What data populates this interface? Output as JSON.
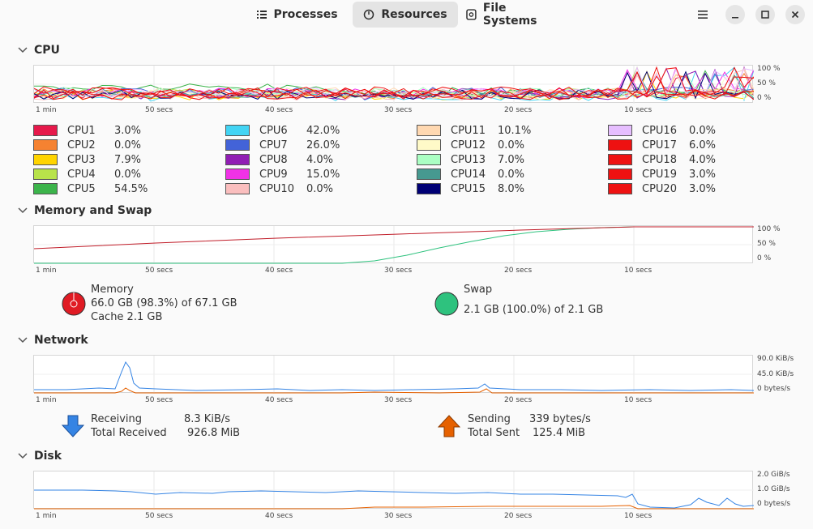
{
  "header": {
    "tabs": [
      {
        "label": "Processes",
        "active": false,
        "icon": "list-icon"
      },
      {
        "label": "Resources",
        "active": true,
        "icon": "gauge-icon"
      },
      {
        "label": "File Systems",
        "active": false,
        "icon": "disk-icon"
      }
    ]
  },
  "time_axis": [
    "1 min",
    "50 secs",
    "40 secs",
    "30 secs",
    "20 secs",
    "10 secs"
  ],
  "cpu": {
    "title": "CPU",
    "y_ticks": [
      "100 %",
      "50 %",
      "0 %"
    ],
    "cores": [
      {
        "name": "CPU1",
        "value": "3.0%",
        "color": "#e6194b"
      },
      {
        "name": "CPU2",
        "value": "0.0%",
        "color": "#f58231"
      },
      {
        "name": "CPU3",
        "value": "7.9%",
        "color": "#ffd400"
      },
      {
        "name": "CPU4",
        "value": "0.0%",
        "color": "#b8e34a"
      },
      {
        "name": "CPU5",
        "value": "54.5%",
        "color": "#3cb44b"
      },
      {
        "name": "CPU6",
        "value": "42.0%",
        "color": "#42d4f4"
      },
      {
        "name": "CPU7",
        "value": "26.0%",
        "color": "#4363d8"
      },
      {
        "name": "CPU8",
        "value": "4.0%",
        "color": "#911eb4"
      },
      {
        "name": "CPU9",
        "value": "15.0%",
        "color": "#f032e6"
      },
      {
        "name": "CPU10",
        "value": "0.0%",
        "color": "#fabebe"
      },
      {
        "name": "CPU11",
        "value": "10.1%",
        "color": "#ffd8b1"
      },
      {
        "name": "CPU12",
        "value": "0.0%",
        "color": "#fffac8"
      },
      {
        "name": "CPU13",
        "value": "7.0%",
        "color": "#aaffc3"
      },
      {
        "name": "CPU14",
        "value": "0.0%",
        "color": "#469990"
      },
      {
        "name": "CPU15",
        "value": "8.0%",
        "color": "#000075"
      },
      {
        "name": "CPU16",
        "value": "0.0%",
        "color": "#e6beff"
      },
      {
        "name": "CPU17",
        "value": "6.0%",
        "color": "#ee1111"
      },
      {
        "name": "CPU18",
        "value": "4.0%",
        "color": "#ee1111"
      },
      {
        "name": "CPU19",
        "value": "3.0%",
        "color": "#ee1111"
      },
      {
        "name": "CPU20",
        "value": "3.0%",
        "color": "#ee1111"
      }
    ]
  },
  "memory": {
    "title": "Memory and Swap",
    "y_ticks": [
      "100 %",
      "50 %",
      "0 %"
    ],
    "memory_label": "Memory",
    "memory_usage": "66.0 GB (98.3%) of 67.1 GB",
    "memory_cache": "Cache 2.1 GB",
    "memory_color": "#e01b24",
    "swap_label": "Swap",
    "swap_usage": "2.1 GB (100.0%) of 2.1 GB",
    "swap_color": "#2ec27e"
  },
  "network": {
    "title": "Network",
    "y_ticks": [
      "90.0 KiB/s",
      "45.0 KiB/s",
      "0 bytes/s"
    ],
    "receiving_label": "Receiving",
    "receiving_value": "8.3 KiB/s",
    "total_received_label": "Total Received",
    "total_received_value": "926.8 MiB",
    "sending_label": "Sending",
    "sending_value": "339 bytes/s",
    "total_sent_label": "Total Sent",
    "total_sent_value": "125.4 MiB",
    "receive_color": "#3584e4",
    "send_color": "#e66100"
  },
  "disk": {
    "title": "Disk",
    "y_ticks": [
      "2.0 GiB/s",
      "1.0 GiB/s",
      "0 bytes/s"
    ]
  }
}
